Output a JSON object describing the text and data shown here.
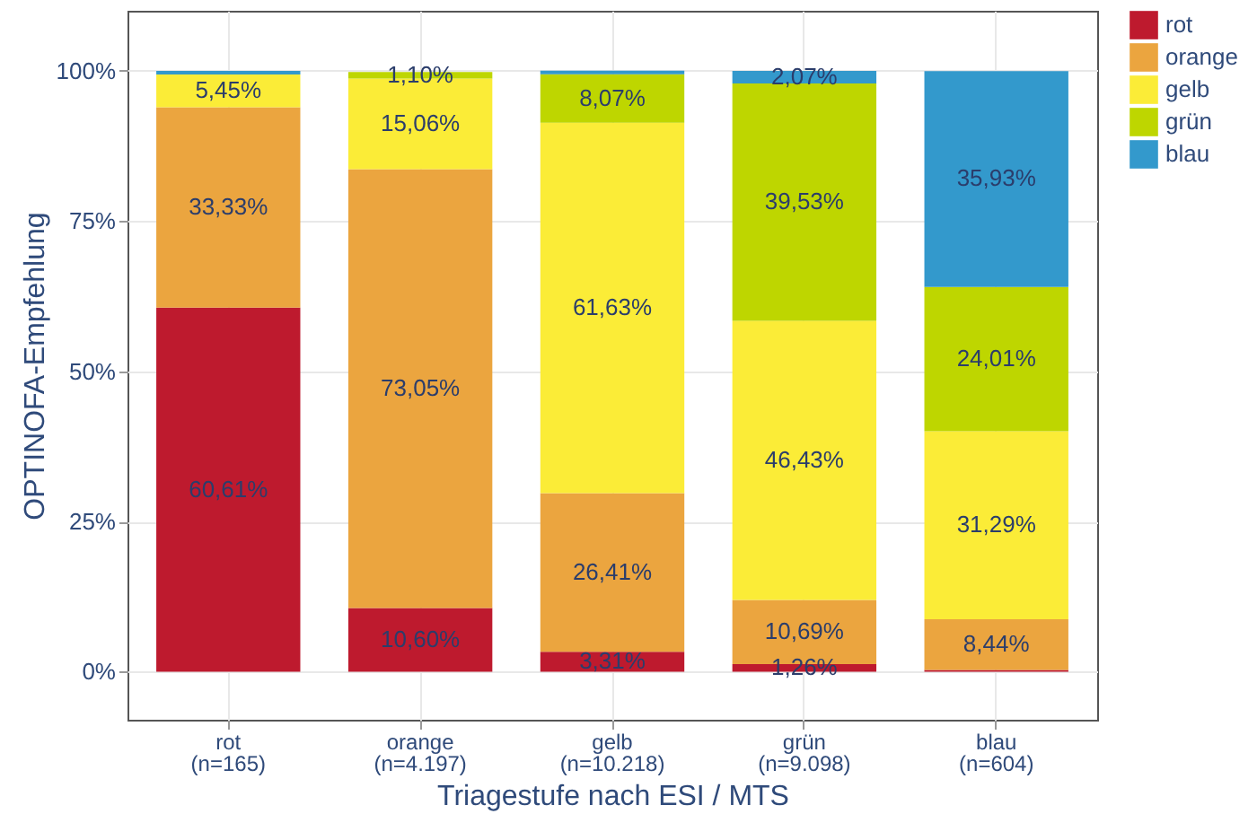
{
  "chart_data": {
    "type": "bar",
    "stacked": true,
    "xlabel": "Triagestufe nach ESI / MTS",
    "ylabel": "OPTINOFA-Empfehlung",
    "categories": [
      "rot\n(n=165)",
      "orange\n(n=4.197)",
      "gelb\n(n=10.218)",
      "grün\n(n=9.098)",
      "blau\n(n=604)"
    ],
    "series": [
      {
        "name": "rot",
        "color": "#be1a2e",
        "values": [
          60.61,
          10.6,
          3.31,
          1.26,
          0.3
        ],
        "value_labels": [
          "60,61%",
          "10,60%",
          "3,31%",
          "1,26%",
          null
        ]
      },
      {
        "name": "orange",
        "color": "#eba53f",
        "values": [
          33.33,
          73.05,
          26.41,
          10.69,
          8.44
        ],
        "value_labels": [
          "33,33%",
          "73,05%",
          "26,41%",
          "10,69%",
          "8,44%"
        ]
      },
      {
        "name": "gelb",
        "color": "#fbec37",
        "values": [
          5.45,
          15.06,
          61.63,
          46.43,
          31.29
        ],
        "value_labels": [
          "5,45%",
          "15,06%",
          "61,63%",
          "46,43%",
          "31,29%"
        ]
      },
      {
        "name": "grün",
        "color": "#bed600",
        "values": [
          null,
          1.1,
          8.07,
          39.53,
          24.01
        ],
        "value_labels": [
          null,
          "1,10%",
          "8,07%",
          "39,53%",
          "24,01%"
        ]
      },
      {
        "name": "blau",
        "color": "#3399cc",
        "values": [
          0.6,
          null,
          0.6,
          2.07,
          35.93
        ],
        "value_labels": [
          null,
          null,
          null,
          "2,07%",
          "35,93%"
        ]
      }
    ],
    "ylim": [
      -8,
      110
    ],
    "yticks": [
      {
        "value": 0,
        "label": "0%"
      },
      {
        "value": 25,
        "label": "25%"
      },
      {
        "value": 50,
        "label": "50%"
      },
      {
        "value": 75,
        "label": "75%"
      },
      {
        "value": 100,
        "label": "100%"
      }
    ],
    "grid": true,
    "legend": "right"
  }
}
